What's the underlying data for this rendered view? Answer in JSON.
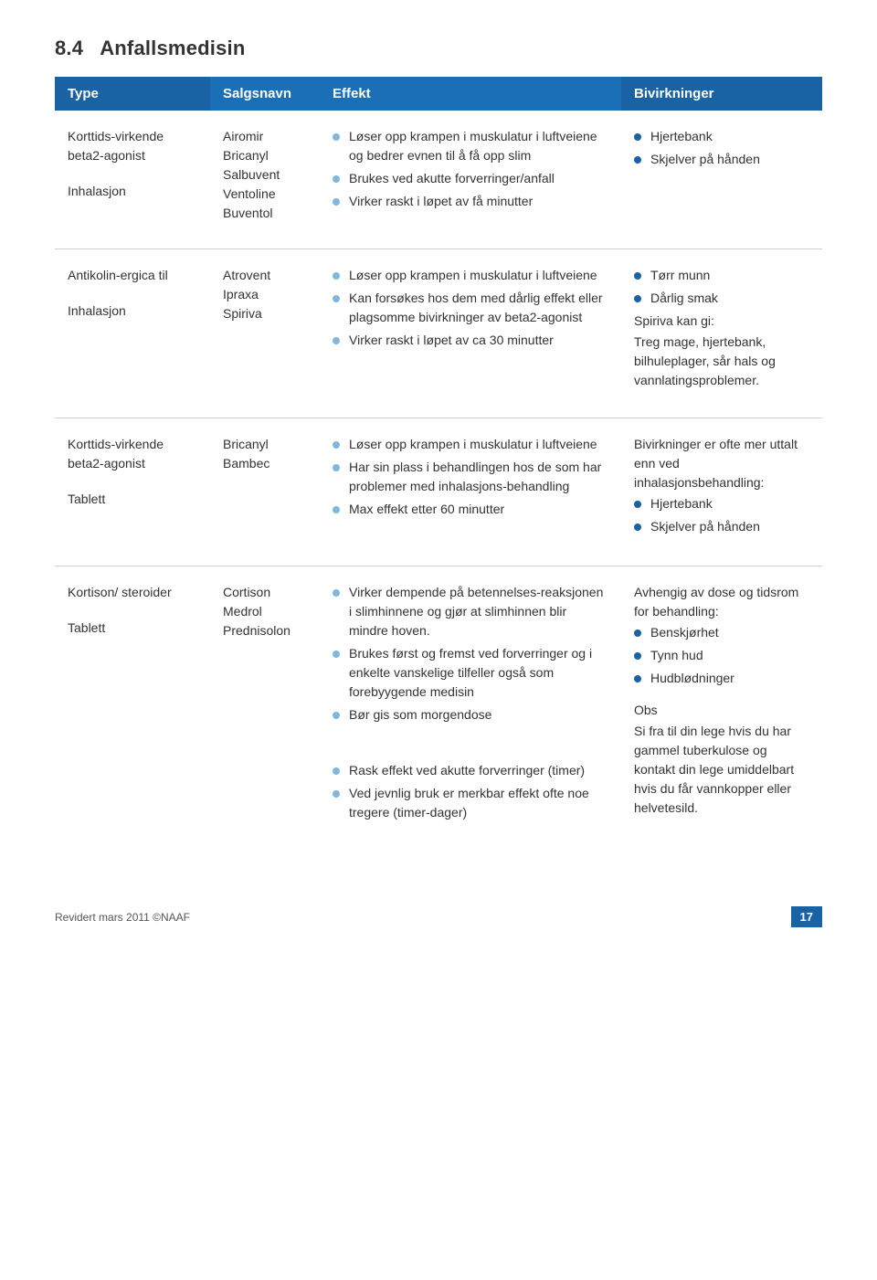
{
  "section": {
    "number": "8.4",
    "title": "Anfallsmedisin"
  },
  "header": {
    "type": "Type",
    "brand": "Salgsnavn",
    "effect": "Effekt",
    "side": "Bivirkninger"
  },
  "rows": [
    {
      "type_l1": "Korttids-virkende beta2-agonist",
      "type_l2": "Inhalasjon",
      "brands": [
        "Airomir",
        "Bricanyl",
        "Salbuvent",
        "Ventoline",
        "Buventol"
      ],
      "effects": [
        "Løser opp krampen i muskulatur i luftveiene og bedrer evnen til å få opp slim",
        "Brukes ved akutte forverringer/anfall",
        "Virker raskt i løpet av få minutter"
      ],
      "side_bullets": [
        "Hjertebank",
        "Skjelver på hånden"
      ],
      "side_free": []
    },
    {
      "type_l1": "Antikolin-ergica til",
      "type_l2": "Inhalasjon",
      "brands": [
        "Atrovent",
        "Ipraxa",
        "Spiriva"
      ],
      "effects": [
        "Løser opp krampen i muskulatur i luftveiene",
        "Kan forsøkes hos dem med dårlig effekt eller plagsomme bivirkninger av beta2-agonist",
        "Virker raskt i løpet av ca 30 minutter"
      ],
      "side_bullets": [
        "Tørr munn",
        "Dårlig smak"
      ],
      "side_free": [
        "Spiriva kan gi:",
        "Treg mage, hjertebank, bilhuleplager, sår hals og vannlatingsproblemer."
      ]
    },
    {
      "type_l1": "Korttids-virkende beta2-agonist",
      "type_l2": "Tablett",
      "brands": [
        "Bricanyl",
        "Bambec"
      ],
      "effects": [
        "Løser opp krampen i muskulatur i luftveiene",
        "Har sin plass i behandlingen hos de som har problemer med inhalasjons-behandling",
        "Max effekt etter 60 minutter"
      ],
      "side_intro": "Bivirkninger er ofte mer uttalt enn ved inhalasjonsbehandling:",
      "side_bullets": [
        "Hjertebank",
        "Skjelver på hånden"
      ],
      "side_free": []
    },
    {
      "type_l1": "Kortison/ steroider",
      "type_l2": "Tablett",
      "brands": [
        "Cortison",
        "Medrol",
        "Prednisolon"
      ],
      "effects": [
        "Virker dempende på betennelses-reaksjonen i slimhinnene og gjør at slimhinnen blir mindre hoven.",
        "Brukes først og fremst ved forverringer og i enkelte vanskelige tilfeller også som forebyygende medisin",
        "Bør gis som morgendose"
      ],
      "effects_extra": [
        "Rask effekt ved akutte forverringer (timer)",
        "Ved jevnlig bruk er merkbar effekt ofte noe tregere (timer-dager)"
      ],
      "side_intro": "Avhengig av dose og tidsrom for behandling:",
      "side_bullets": [
        "Benskjørhet",
        "Tynn hud",
        "Hudblødninger"
      ],
      "side_obs_label": "Obs",
      "side_obs_text": "Si fra til din lege hvis du har gammel tuberkulose og kontakt din lege umiddelbart hvis du får vannkopper eller helvetesild."
    }
  ],
  "footer": {
    "rev": "Revidert mars 2011  ©NAAF",
    "page": "17"
  },
  "colors": {
    "header_dark": "#1962a4",
    "header_light": "#1b6fb7",
    "bullet_dark": "#1962a4",
    "bullet_light": "#7fb7df"
  }
}
